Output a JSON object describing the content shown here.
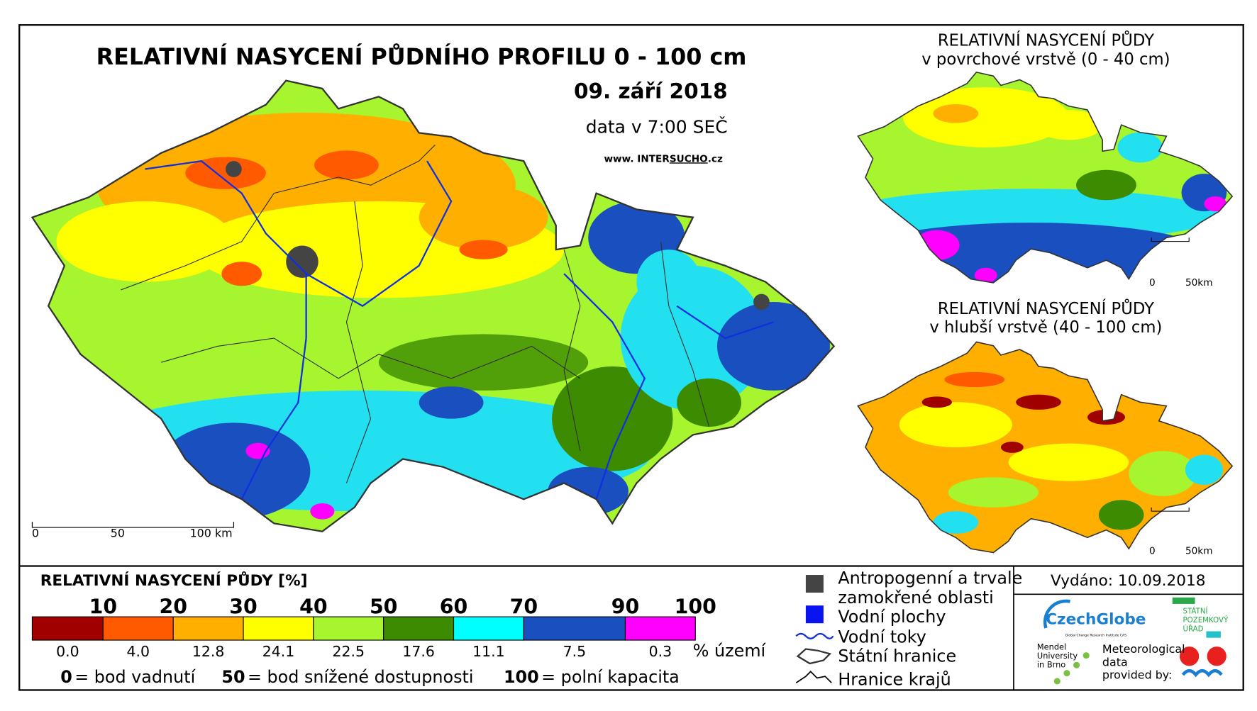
{
  "map": {
    "title": "RELATIVNÍ NASYCENÍ PŮDNÍHO PROFILU 0 - 100 cm",
    "date": "09. září 2018",
    "time": "data v 7:00 SEČ",
    "website": [
      "www. INTER",
      "SUCHO",
      ".cz"
    ],
    "scale": [
      "0",
      "50",
      "100 km"
    ]
  },
  "insets": [
    {
      "title": [
        "RELATIVNÍ NASYCENÍ PŮDY",
        "v povrchové vrstvě (0 - 40 cm)"
      ],
      "scale": [
        "0",
        "50km"
      ]
    },
    {
      "title": [
        "RELATIVNÍ NASYCENÍ PŮDY",
        "v hlubší vrstvě (40 - 100 cm)"
      ],
      "scale": [
        "0",
        "50km"
      ]
    }
  ],
  "legend": {
    "title": "RELATIVNÍ NASYCENÍ PŮDY [%]",
    "breaks": [
      10,
      20,
      30,
      40,
      50,
      60,
      70,
      90,
      100
    ],
    "colors": [
      "#a00000",
      "#ff5a00",
      "#ffaf00",
      "#ffff00",
      "#a6f52e",
      "#3d8b00",
      "#00ffff",
      "#1a4fc0",
      "#ff00ff"
    ],
    "shares": [
      "0.0",
      "4.0",
      "12.8",
      "24.1",
      "22.5",
      "17.6",
      "11.1",
      "7.5",
      "0.3"
    ],
    "shares_unit": "% území",
    "definitions": [
      {
        "value": 0,
        "text": "= bod vadnutí"
      },
      {
        "value": 50,
        "text": "= bod snížené dostupnosti"
      },
      {
        "value": 100,
        "text": "= polní kapacita"
      }
    ]
  },
  "symbols": [
    [
      "Antropogenní a trvale",
      "zamokřené oblasti"
    ],
    [
      "Vodní plochy"
    ],
    [
      "Vodní toky"
    ],
    [
      "Státní hranice"
    ],
    [
      "Hranice krajů"
    ]
  ],
  "footer": {
    "issued": "Vydáno: 10.09.2018",
    "czechglobe": "CzechGlobe",
    "czechglobe_sub": "Global Change Research Institute CAS",
    "spu": [
      "STÁTNÍ",
      "POZEMKOVÝ",
      "ÚŘAD"
    ],
    "mendel": [
      "Mendel",
      "University",
      "in Brno"
    ],
    "meteo": [
      "Meteorological",
      "data",
      "provided by:"
    ]
  }
}
